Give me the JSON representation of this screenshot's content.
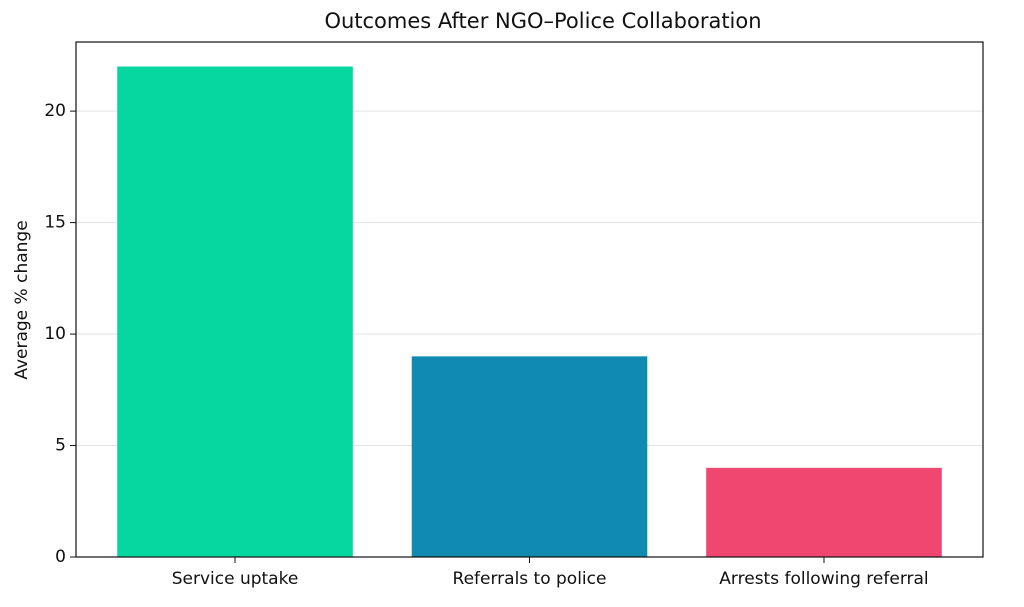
{
  "chart_data": {
    "type": "bar",
    "title": "Outcomes After NGO–Police Collaboration",
    "y_label": "Average % change",
    "categories": [
      "Service uptake",
      "Referrals to police",
      "Arrests following referral"
    ],
    "values": [
      22,
      9,
      4
    ],
    "colors": [
      "#06d6a0",
      "#118ab2",
      "#ef476f"
    ],
    "ylim": [
      0,
      23.1
    ],
    "yticks": [
      0,
      5,
      10,
      15,
      20
    ],
    "grid": true
  }
}
